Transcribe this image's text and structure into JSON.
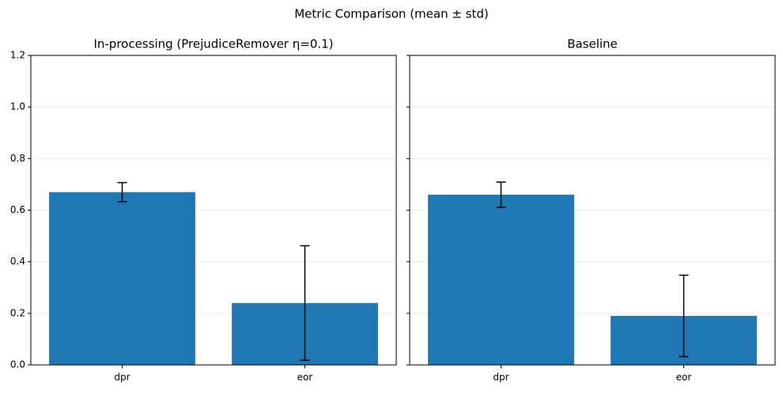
{
  "title": "Metric Comparison (mean ± std)",
  "chart_data": [
    {
      "type": "bar",
      "title": "In-processing (PrejudiceRemover η=0.1)",
      "categories": [
        "dpr",
        "eor"
      ],
      "values": [
        0.67,
        0.24
      ],
      "errors": [
        0.037,
        0.222
      ],
      "color": "#1f77b4",
      "ylim": [
        0,
        1.2
      ],
      "yticks": [
        {
          "value": 0,
          "label": "0.0"
        },
        0.2,
        0.4,
        0.6,
        0.8,
        {
          "value": 1,
          "label": "1.0"
        },
        1.2
      ],
      "grid": true
    },
    {
      "type": "bar",
      "title": "Baseline",
      "categories": [
        "dpr",
        "eor"
      ],
      "values": [
        0.66,
        0.19
      ],
      "errors": [
        0.049,
        0.158
      ],
      "color": "#1f77b4",
      "grid": true
    }
  ]
}
